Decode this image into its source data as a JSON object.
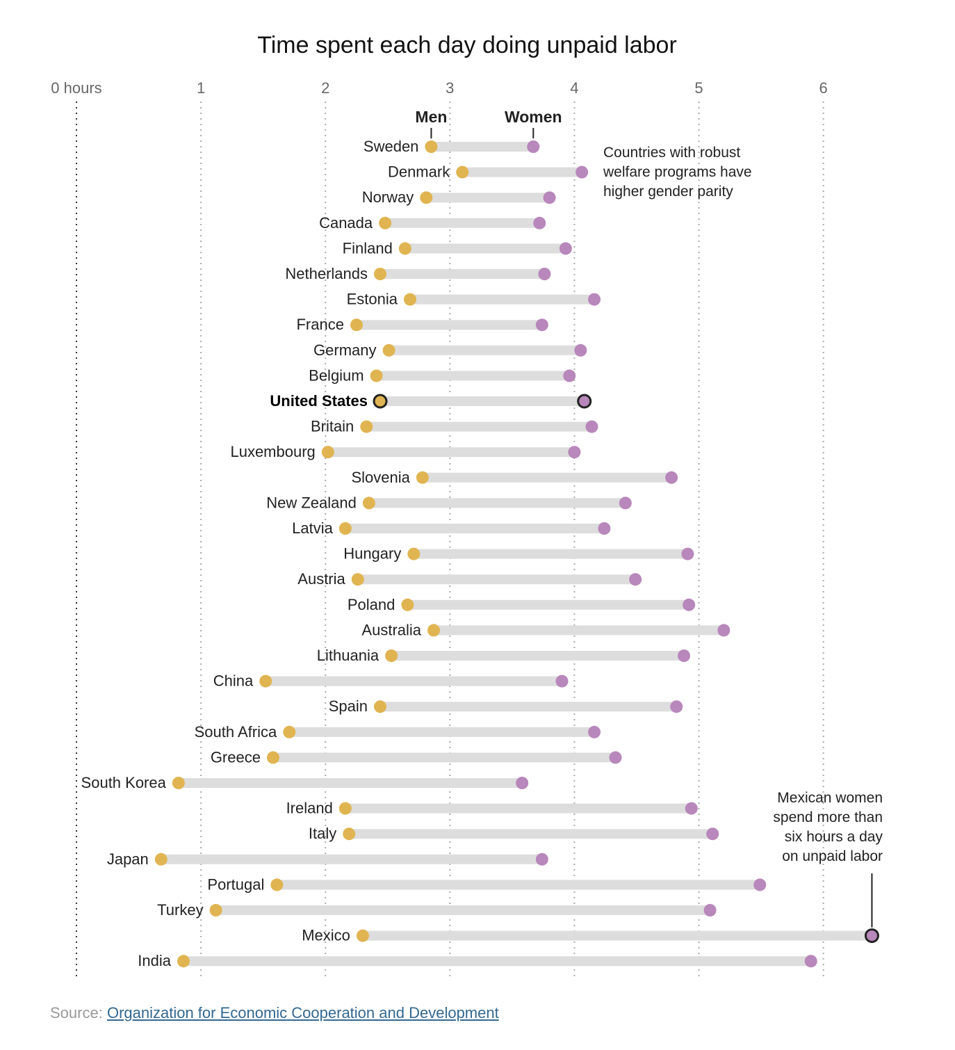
{
  "chart_data": {
    "type": "dot-range",
    "title": "Time spent each day doing unpaid labor",
    "x_ticks": [
      "0 hours",
      "1",
      "2",
      "3",
      "4",
      "5",
      "6"
    ],
    "x_tick_values": [
      0,
      1,
      2,
      3,
      4,
      5,
      6
    ],
    "xlim": [
      0,
      6.5
    ],
    "grid": true,
    "legend": {
      "men": "Men",
      "women": "Women"
    },
    "colors": {
      "men": "#e0b451",
      "women": "#b887bb",
      "bar": "#dddddd",
      "grid": "#aaaaaa"
    },
    "highlight": "United States",
    "rows": [
      {
        "country": "Sweden",
        "men": 2.85,
        "women": 3.67
      },
      {
        "country": "Denmark",
        "men": 3.1,
        "women": 4.06
      },
      {
        "country": "Norway",
        "men": 2.81,
        "women": 3.8
      },
      {
        "country": "Canada",
        "men": 2.48,
        "women": 3.72
      },
      {
        "country": "Finland",
        "men": 2.64,
        "women": 3.93
      },
      {
        "country": "Netherlands",
        "men": 2.44,
        "women": 3.76
      },
      {
        "country": "Estonia",
        "men": 2.68,
        "women": 4.16
      },
      {
        "country": "France",
        "men": 2.25,
        "women": 3.74
      },
      {
        "country": "Germany",
        "men": 2.51,
        "women": 4.05
      },
      {
        "country": "Belgium",
        "men": 2.41,
        "women": 3.96
      },
      {
        "country": "United States",
        "men": 2.44,
        "women": 4.08
      },
      {
        "country": "Britain",
        "men": 2.33,
        "women": 4.14
      },
      {
        "country": "Luxembourg",
        "men": 2.02,
        "women": 4.0
      },
      {
        "country": "Slovenia",
        "men": 2.78,
        "women": 4.78
      },
      {
        "country": "New Zealand",
        "men": 2.35,
        "women": 4.41
      },
      {
        "country": "Latvia",
        "men": 2.16,
        "women": 4.24
      },
      {
        "country": "Hungary",
        "men": 2.71,
        "women": 4.91
      },
      {
        "country": "Austria",
        "men": 2.26,
        "women": 4.49
      },
      {
        "country": "Poland",
        "men": 2.66,
        "women": 4.92
      },
      {
        "country": "Australia",
        "men": 2.87,
        "women": 5.2
      },
      {
        "country": "Lithuania",
        "men": 2.53,
        "women": 4.88
      },
      {
        "country": "China",
        "men": 1.52,
        "women": 3.9
      },
      {
        "country": "Spain",
        "men": 2.44,
        "women": 4.82
      },
      {
        "country": "South Africa",
        "men": 1.71,
        "women": 4.16
      },
      {
        "country": "Greece",
        "men": 1.58,
        "women": 4.33
      },
      {
        "country": "South Korea",
        "men": 0.82,
        "women": 3.58
      },
      {
        "country": "Ireland",
        "men": 2.16,
        "women": 4.94
      },
      {
        "country": "Italy",
        "men": 2.19,
        "women": 5.11
      },
      {
        "country": "Japan",
        "men": 0.68,
        "women": 3.74
      },
      {
        "country": "Portugal",
        "men": 1.61,
        "women": 5.49
      },
      {
        "country": "Turkey",
        "men": 1.12,
        "women": 5.09
      },
      {
        "country": "Mexico",
        "men": 2.3,
        "women": 6.39
      },
      {
        "country": "India",
        "men": 0.86,
        "women": 5.9
      }
    ],
    "annotations": [
      {
        "text": [
          "Countries with robust",
          "welfare programs have",
          "higher gender parity"
        ],
        "row": "Sweden"
      },
      {
        "text": [
          "Mexican women",
          "spend more than",
          "six hours a day",
          "on unpaid labor"
        ],
        "row": "Mexico"
      }
    ]
  },
  "source": {
    "label": "Source:",
    "link_text": "Organization for Economic Cooperation and Development"
  }
}
